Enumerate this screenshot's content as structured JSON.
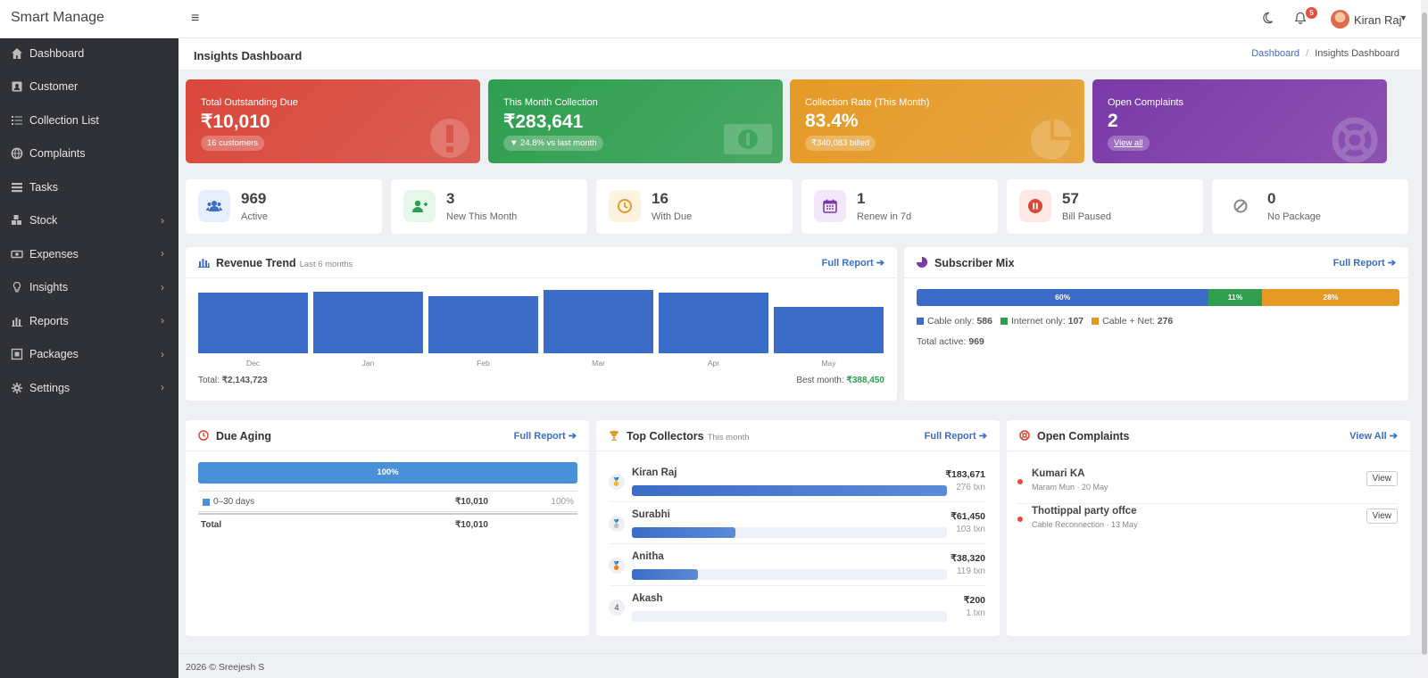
{
  "app": {
    "brand": "Smart Manage",
    "notif_count": "5",
    "user_name": "Kiran Raj"
  },
  "sidebar": {
    "items": [
      {
        "label": "Dashboard",
        "icon": "home-icon",
        "chevron": false
      },
      {
        "label": "Customer",
        "icon": "id-card-icon",
        "chevron": false
      },
      {
        "label": "Collection List",
        "icon": "list-icon",
        "chevron": false
      },
      {
        "label": "Complaints",
        "icon": "globe-icon",
        "chevron": false
      },
      {
        "label": "Tasks",
        "icon": "tasks-icon",
        "chevron": false
      },
      {
        "label": "Stock",
        "icon": "cubes-icon",
        "chevron": true
      },
      {
        "label": "Expenses",
        "icon": "money-icon",
        "chevron": true
      },
      {
        "label": "Insights",
        "icon": "lightbulb-icon",
        "chevron": true
      },
      {
        "label": "Reports",
        "icon": "bar-chart-icon",
        "chevron": true
      },
      {
        "label": "Packages",
        "icon": "package-icon",
        "chevron": true
      },
      {
        "label": "Settings",
        "icon": "gear-icon",
        "chevron": true
      }
    ]
  },
  "page": {
    "title": "Insights Dashboard",
    "breadcrumb_link": "Dashboard",
    "breadcrumb_sep": "/",
    "breadcrumb_current": "Insights Dashboard"
  },
  "kpis": [
    {
      "title": "Total Outstanding Due",
      "value": "₹10,010",
      "pill": "16 customers",
      "color": "#d9473a",
      "icon": "exclamation-icon"
    },
    {
      "title": "This Month Collection",
      "value": "₹283,641",
      "pill": "▼ 24.8% vs last month",
      "color": "#2f9e4f",
      "icon": "money-icon"
    },
    {
      "title": "Collection Rate (This Month)",
      "value": "83.4%",
      "pill": "₹340,083 billed",
      "color": "#e59a26",
      "icon": "pie-chart-icon"
    },
    {
      "title": "Open Complaints",
      "value": "2",
      "pill": "View all",
      "color": "#7b3aa8",
      "icon": "life-ring-icon"
    }
  ],
  "stats": [
    {
      "value": "969",
      "label": "Active",
      "icon": "users-icon",
      "bg": "#e6efff",
      "fg": "#3d6cc8"
    },
    {
      "value": "3",
      "label": "New This Month",
      "icon": "user-plus-icon",
      "bg": "#e5f6ea",
      "fg": "#2f9e4f"
    },
    {
      "value": "16",
      "label": "With Due",
      "icon": "clock-icon",
      "bg": "#fdf3e0",
      "fg": "#e59a26"
    },
    {
      "value": "1",
      "label": "Renew in 7d",
      "icon": "calendar-icon",
      "bg": "#f3e8fa",
      "fg": "#7b3aa8"
    },
    {
      "value": "57",
      "label": "Bill Paused",
      "icon": "pause-icon",
      "bg": "#fde8e6",
      "fg": "#d9473a"
    },
    {
      "value": "0",
      "label": "No Package",
      "icon": "ban-icon",
      "bg": "#ffffff",
      "fg": "#888888"
    }
  ],
  "revenue": {
    "title": "Revenue Trend",
    "subtitle": "Last 6 months",
    "link": "Full Report",
    "total_label": "Total:",
    "total_value": "₹2,143,723",
    "best_label": "Best month:",
    "best_value": "₹388,450"
  },
  "chart_data": {
    "type": "bar",
    "categories": [
      "Dec",
      "Jan",
      "Feb",
      "Mar",
      "Apr",
      "May"
    ],
    "values": [
      370000,
      380000,
      350000,
      388450,
      375000,
      283641
    ],
    "title": "Revenue Trend",
    "ylim": [
      0,
      400000
    ]
  },
  "subscriber_mix": {
    "title": "Subscriber Mix",
    "link": "Full Report",
    "segments": [
      {
        "pct": "60%",
        "share": 60.5,
        "color": "#3d6cc8",
        "name": "Cable only:",
        "count": "586"
      },
      {
        "pct": "11%",
        "share": 11.0,
        "color": "#2f9e4f",
        "name": "Internet only:",
        "count": "107"
      },
      {
        "pct": "28%",
        "share": 28.5,
        "color": "#e59a26",
        "name": "Cable + Net:",
        "count": "276"
      }
    ],
    "total_label": "Total active:",
    "total_value": "969"
  },
  "due_aging": {
    "title": "Due Aging",
    "link": "Full Report",
    "bar_label": "100%",
    "bar_share": 100,
    "rows": [
      {
        "bucket": "0–30 days",
        "amount": "₹10,010",
        "pct": "100%"
      }
    ],
    "total_label": "Total",
    "total_value": "₹10,010"
  },
  "top_collectors": {
    "title": "Top Collectors",
    "subtitle": "This month",
    "link": "Full Report",
    "rows": [
      {
        "rank": "🥇",
        "name": "Kiran Raj",
        "amount": "₹183,671",
        "txn": "276 txn",
        "share": 1.0
      },
      {
        "rank": "🥈",
        "name": "Surabhi",
        "amount": "₹61,450",
        "txn": "103 txn",
        "share": 0.33
      },
      {
        "rank": "🥉",
        "name": "Anitha",
        "amount": "₹38,320",
        "txn": "119 txn",
        "share": 0.21
      },
      {
        "rank": "4",
        "name": "Akash",
        "amount": "₹200",
        "txn": "1 txn",
        "share": 0.0
      }
    ]
  },
  "open_complaints": {
    "title": "Open Complaints",
    "link": "View All",
    "rows": [
      {
        "name": "Kumari KA",
        "sub": "Maram Mun · 20 May",
        "button": "View"
      },
      {
        "name": "Thottippal party offce",
        "sub": "Cable Reconnection · 13 May",
        "button": "View"
      }
    ]
  },
  "footer": {
    "text": "2026 © Sreejesh S"
  }
}
